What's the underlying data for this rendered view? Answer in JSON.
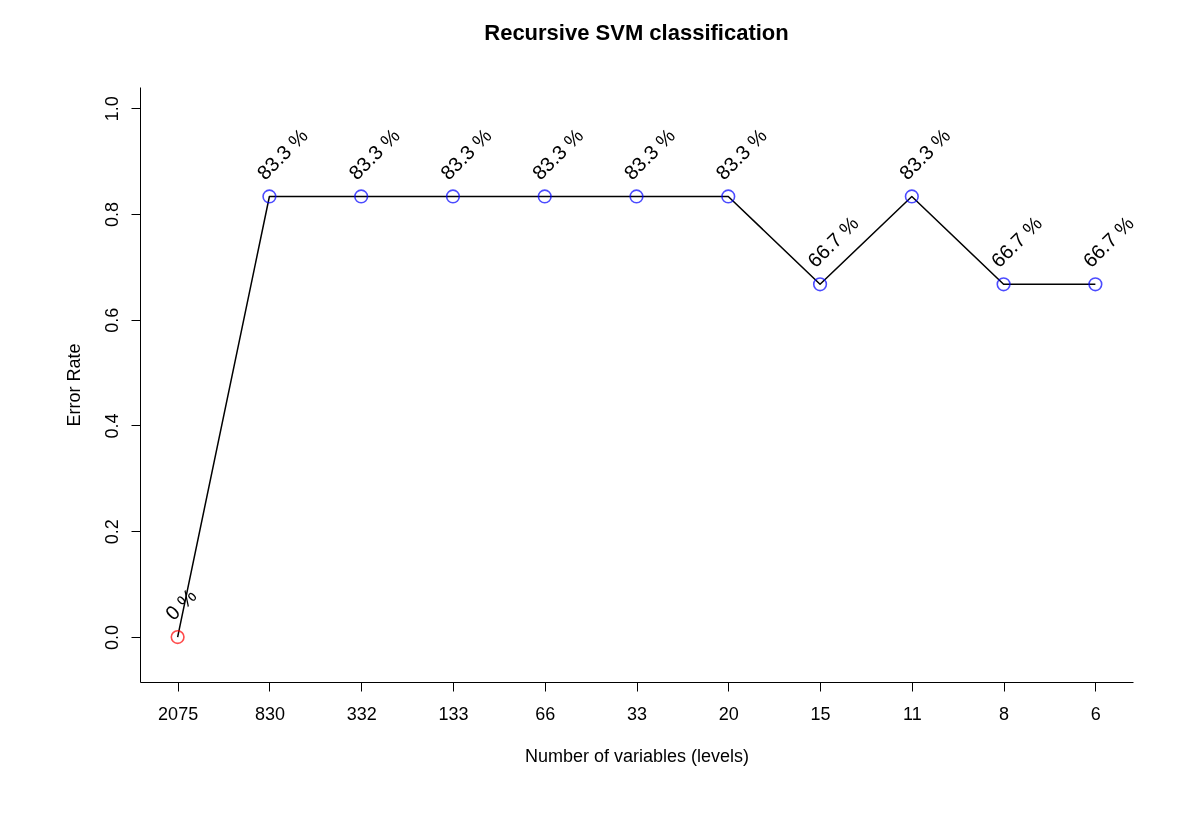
{
  "chart_data": {
    "type": "line",
    "title": "Recursive SVM classification",
    "xlabel": "Number of variables (levels)",
    "ylabel": "Error Rate",
    "categories": [
      "2075",
      "830",
      "332",
      "133",
      "66",
      "33",
      "20",
      "15",
      "11",
      "8",
      "6"
    ],
    "series": [
      {
        "color": "#000000",
        "colors": [
          "#ff0000",
          "#0000ff",
          "#0000ff",
          "#0000ff",
          "#0000ff",
          "#0000ff",
          "#0000ff",
          "#0000ff",
          "#0000ff",
          "#0000ff",
          "#0000ff"
        ],
        "values": [
          0,
          0.833,
          0.833,
          0.833,
          0.833,
          0.833,
          0.833,
          0.667,
          0.833,
          0.667,
          0.667
        ],
        "value_labels": [
          "0 %",
          "83.3 %",
          "83.3 %",
          "83.3 %",
          "83.3 %",
          "83.3 %",
          "83.3 %",
          "66.7 %",
          "83.3 %",
          "66.7 %",
          "66.7 %"
        ]
      }
    ],
    "ylim": [
      -0.085,
      1.04
    ],
    "yticks": [
      {
        "value": 0,
        "label": "0.0"
      },
      0.2,
      0.4,
      0.6,
      0.8,
      {
        "value": 1,
        "label": "1.0"
      }
    ],
    "grid": false,
    "marker": "circle"
  }
}
